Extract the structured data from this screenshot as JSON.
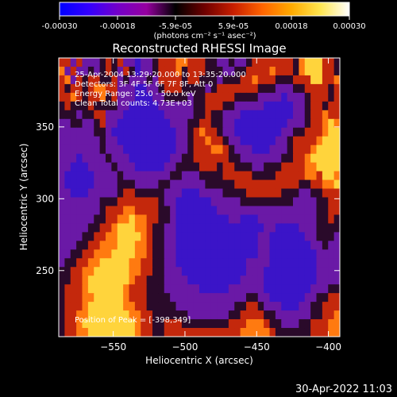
{
  "colorbar": {
    "ticks": [
      "-0.00030",
      "-0.00018",
      "-5.9e-05",
      "5.9e-05",
      "0.00018",
      "0.00030"
    ],
    "unit_label": "(photons cm⁻² s⁻¹ asec⁻²)",
    "range": [
      -0.0003,
      0.0003
    ],
    "stops": [
      "#0000ff",
      "#3300ff",
      "#7300c8",
      "#9600a0",
      "#000000",
      "#6e0000",
      "#c81e00",
      "#ff6400",
      "#ffaa00",
      "#ffe650",
      "#ffffff"
    ]
  },
  "info_lines": [
    "25-Apr-2004 13:29:20.000 to 13:35:20.000",
    "Detectors: 3F 4F 5F 6F 7F 8F, Att 0",
    "Energy Range: 25.0 - 50.0 keV",
    "Clean     Total counts: 4.73E+03"
  ],
  "peak_text": "Position of Peak = [-398,349]",
  "footer_timestamp": "30-Apr-2022 11:03",
  "chart_data": {
    "type": "heatmap",
    "title": "Reconstructed RHESSI Image",
    "xlabel": "Heliocentric X (arcsec)",
    "ylabel": "Heliocentric Y (arcsec)",
    "xlim": [
      -588,
      -392
    ],
    "ylim": [
      204,
      398
    ],
    "x_ticks": [
      -550,
      -500,
      -450,
      -400
    ],
    "y_ticks": [
      250,
      300,
      350
    ],
    "peak_position": [
      -398,
      349
    ],
    "grid": false,
    "description_levels": {
      "min": -0.0003,
      "max": 0.0003
    },
    "grid_cells": [
      "rrprpppkrkrppbppkrrroorrrkkppkppkrrrrrrrkoyyyrrk",
      "oprppkpkrkprkbppkrrrokrrrkkkppkkrrrrorrrkoyyyrrk",
      "roprkrrkkrpkpppkprrrrkrrkkkpkkkrrorrrkkkrrryyrro",
      "rkrrkroorrpppbbppkrrrkkkkpkrrrrrrrkkkpppkkrrrrkr",
      "rrorkrrokrpppbbbppkkkkpkkrrrrrkkkkppppbpppkrrrkr",
      "krkkkrkkkkppbbbbbppppppkkrrrkkpppppbbbbbppkrrkrr",
      "kkkpkkrrpppbbbbbbbpppppkkrkkpppbbbbbbbbbppkrrorr",
      "ppkkppkrppbbbbbbbbbpppkkrrkkppbbbbbbbbbpppkrroyo",
      "ppppppkkpbbbbbbbbbbbppkrorrkppbbbbbbbbppkkrrroyy",
      "pppppppkppbbbbbbbbbbppkrrorrkppbbbbbbppkrrrroyyy",
      "pppppppkpppbbbbbbbbbppkrrroorkpppbbbpppkrrroyyyy",
      "pppbppppkpppbbbbbbbppkkrrrrrrkkpppppppkkrroyyyyy",
      "ppbbbppppkpppbbbbbppkkkkrrrkrrkkkppkkkrrrrooyyyy",
      "pbbbbbppppkppppppppkkpppkkkkrrrrrkkkkrrrrrooryyo",
      "pbbbbbppppkkkppppkkppppppkkkkkrrrrrrrrrrrkkrrooy",
      "ppbbbpppppkrrkkkkkpppbbbppppkkkkrrrrrrkkkppkkrrr",
      "pppppppkkkrrrrrrrkppbbbbbbpppppkkkkkkkkkppppkkrr",
      "pppppppkrrroorrrrkkpbbbbbbbpppppppppppppppppkkrr",
      "ppppppkkrrooyoorrkkpbbbbbbbbbppbbbppppppppppkkrk",
      "pppppkkrroyyyoorkkppbbbbbbbbbbbbbbbppbbbbpppkkkk",
      "ppppkkrrooyyyyorkkppbbbbbbbbbbbbbbppbbbbbbppkkkp",
      "pppkkrroooyyyoorkkppbbbbbbbbbbbbbbppbbbbbbbppkpp",
      "ppkkrroooyyyyoorkkppbbbbbbbbbbbbbbppbbbbbbbbpppp",
      "pkkrrooyyyyyoorrkkppbbbbbbbbbbbbppppbbbbbbbbpppp",
      "kkrrooyyyyyyoorrkkpppbbbbbbbbbbbpppbbbbbbbbbpppp",
      "kkrroyyyyyyyorrkkkppppbbbbbbbbbppppbbbbbbbbbpppp",
      "krrroyyyyyyorrrkkkppppppbbbbbppppppbbbbbbbbpppkk",
      "krrrooyyyyyorrrkkkkpppppppppppppkkppbbbbbbppkkrr",
      "krrroyyyyyyoorrkkkkkppppppppppkkrrkpppbbbppkkrrr",
      "krrooyyyyyyyoorrkkkkkkpppppppkkrrrrkkppppppkkrro",
      "krroyyyyyyyyyorrkkrrrkkkkkkkkrrrooorkkpppkkrrroo",
      "krrooyyyyyyyyorrkkrrrrrrrrrrrrrooooorkkkkkkrrroo"
    ]
  }
}
